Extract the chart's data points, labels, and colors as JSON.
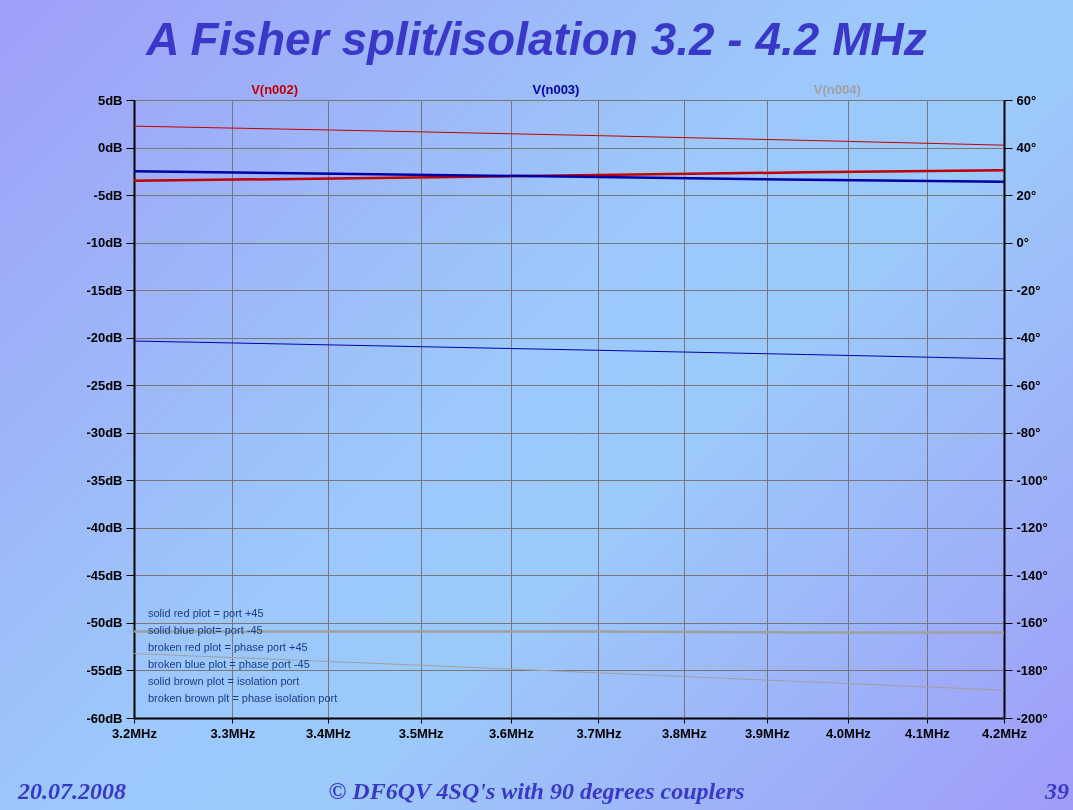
{
  "chart_data": {
    "type": "line",
    "title": "A Fisher split/isolation 3.2 - 4.2 MHz",
    "log": "x",
    "grid": true,
    "legend": "top",
    "line_style": "solid",
    "xlim": [
      3.2,
      4.2
    ],
    "xticks": [
      {
        "value": 3.2,
        "label": "3.2MHz"
      },
      {
        "value": 3.3,
        "label": "3.3MHz"
      },
      {
        "value": 3.4,
        "label": "3.4MHz"
      },
      {
        "value": 3.5,
        "label": "3.5MHz"
      },
      {
        "value": 3.6,
        "label": "3.6MHz"
      },
      {
        "value": 3.7,
        "label": "3.7MHz"
      },
      {
        "value": 3.8,
        "label": "3.8MHz"
      },
      {
        "value": 3.9,
        "label": "3.9MHz"
      },
      {
        "value": 4.0,
        "label": "4.0MHz"
      },
      {
        "value": 4.1,
        "label": "4.1MHz"
      },
      {
        "value": 4.2,
        "label": "4.2MHz"
      }
    ],
    "ylim": [
      -60,
      5
    ],
    "yticks": [
      {
        "value": 5,
        "label": "5dB"
      },
      {
        "value": 0,
        "label": "0dB"
      },
      {
        "value": -5,
        "label": "-5dB"
      },
      {
        "value": -10,
        "label": "-10dB"
      },
      {
        "value": -15,
        "label": "-15dB"
      },
      {
        "value": -20,
        "label": "-20dB"
      },
      {
        "value": -25,
        "label": "-25dB"
      },
      {
        "value": -30,
        "label": "-30dB"
      },
      {
        "value": -35,
        "label": "-35dB"
      },
      {
        "value": -40,
        "label": "-40dB"
      },
      {
        "value": -45,
        "label": "-45dB"
      },
      {
        "value": -50,
        "label": "-50dB"
      },
      {
        "value": -55,
        "label": "-55dB"
      },
      {
        "value": -60,
        "label": "-60dB"
      }
    ],
    "y2lim": [
      -200,
      60
    ],
    "y2ticks": [
      {
        "value": 60,
        "label": "60°"
      },
      {
        "value": 40,
        "label": "40°"
      },
      {
        "value": 20,
        "label": "20°"
      },
      {
        "value": 0,
        "label": "0°"
      },
      {
        "value": -20,
        "label": "-20°"
      },
      {
        "value": -40,
        "label": "-40°"
      },
      {
        "value": -60,
        "label": "-60°"
      },
      {
        "value": -80,
        "label": "-80°"
      },
      {
        "value": -100,
        "label": "-100°"
      },
      {
        "value": -120,
        "label": "-120°"
      },
      {
        "value": -140,
        "label": "-140°"
      },
      {
        "value": -160,
        "label": "-160°"
      },
      {
        "value": -180,
        "label": "-180°"
      },
      {
        "value": -200,
        "label": "-200°"
      }
    ],
    "x": [
      3.2,
      3.45,
      3.7,
      3.95,
      4.2
    ],
    "series": [
      {
        "name": "V(n002)",
        "color": "#c00000",
        "values": [
          -3.5,
          -3.2,
          -2.9,
          -2.6,
          -2.4
        ]
      },
      {
        "name": "V(n003)",
        "color": "#0000a8",
        "values": [
          -2.5,
          -2.8,
          -3.1,
          -3.4,
          -3.6
        ]
      },
      {
        "name": "V(n004)",
        "color": "#a0a0a0",
        "values": [
          -50.9,
          -50.9,
          -50.9,
          -51.0,
          -51.0
        ]
      },
      {
        "color": "#c00000",
        "axis": "y2",
        "values": [
          49,
          47,
          45,
          43,
          41
        ]
      },
      {
        "color": "#0000a8",
        "axis": "y2",
        "values": [
          -41.4,
          -43.4,
          -45.3,
          -47.1,
          -48.9
        ]
      },
      {
        "color": "#a0a0a0",
        "axis": "y2",
        "values": [
          -172.9,
          -177,
          -181,
          -184.8,
          -188.3
        ]
      }
    ],
    "annotations": [
      "solid red plot = port  +45",
      "solid blue plot= port -45",
      "broken red plot = phase port +45",
      "broken blue plot  = phase port -45",
      "solid brown plot = isolation port",
      "broken brown plt = phase isolation port",
      "20.07.2008",
      "© DF6QV 4SQ's with 90 degrees couplers",
      "39"
    ]
  }
}
